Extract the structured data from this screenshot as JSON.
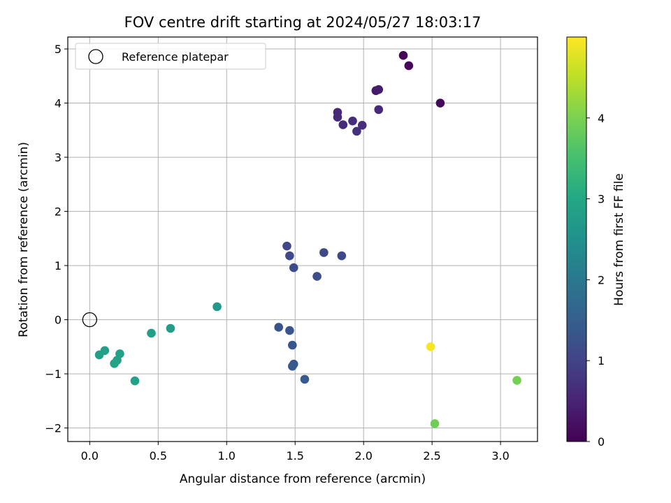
{
  "chart_data": {
    "type": "scatter",
    "title": "FOV centre drift starting at 2024/05/27 18:03:17",
    "xlabel": "Angular distance from reference (arcmin)",
    "ylabel": "Rotation from reference (arcmin)",
    "xlim": [
      -0.16,
      3.27
    ],
    "ylim": [
      -2.25,
      5.22
    ],
    "xticks": [
      "0.0",
      "0.5",
      "1.0",
      "1.5",
      "2.0",
      "2.5",
      "3.0"
    ],
    "yticks": [
      "−2",
      "−1",
      "0",
      "1",
      "2",
      "3",
      "4",
      "5"
    ],
    "grid": true,
    "legend": {
      "position": "top-left",
      "entries": [
        "Reference platepar"
      ]
    },
    "reference_point": {
      "x": 0,
      "y": 0
    },
    "colorbar": {
      "label": "Hours from first FF file",
      "colormap": "viridis",
      "range": [
        0,
        5.0
      ],
      "ticks": [
        "0",
        "1",
        "2",
        "3",
        "4"
      ]
    },
    "series": [
      {
        "x": [
          2.29,
          2.33,
          2.56,
          2.09,
          2.11,
          1.81,
          1.81,
          2.11,
          1.85,
          1.92,
          1.99,
          1.95,
          1.44,
          1.46,
          1.71,
          1.84,
          1.49,
          1.66,
          1.38,
          1.46,
          1.48,
          1.49,
          1.48,
          1.57,
          0.93,
          0.59,
          0.45,
          0.11,
          0.07,
          0.22,
          0.2,
          0.18,
          0.33,
          2.49,
          3.12,
          2.52
        ],
        "y": [
          4.88,
          4.69,
          4.0,
          4.23,
          4.25,
          3.83,
          3.74,
          3.88,
          3.6,
          3.67,
          3.59,
          3.48,
          1.36,
          1.18,
          1.24,
          1.18,
          0.96,
          0.8,
          -0.14,
          -0.2,
          -0.47,
          -0.82,
          -0.86,
          -1.1,
          0.24,
          -0.16,
          -0.25,
          -0.57,
          -0.65,
          -0.63,
          -0.75,
          -0.81,
          -1.13,
          -0.5,
          -1.12,
          -1.92
        ],
        "hours": [
          0.05,
          0.08,
          0.12,
          0.35,
          0.38,
          0.55,
          0.58,
          0.6,
          0.62,
          0.65,
          0.66,
          0.68,
          1.05,
          1.07,
          1.1,
          1.12,
          1.14,
          1.18,
          1.3,
          1.32,
          1.34,
          1.36,
          1.38,
          1.42,
          2.7,
          2.75,
          2.8,
          2.82,
          2.83,
          2.84,
          2.85,
          2.86,
          2.88,
          4.95,
          3.95,
          3.9
        ]
      }
    ]
  }
}
